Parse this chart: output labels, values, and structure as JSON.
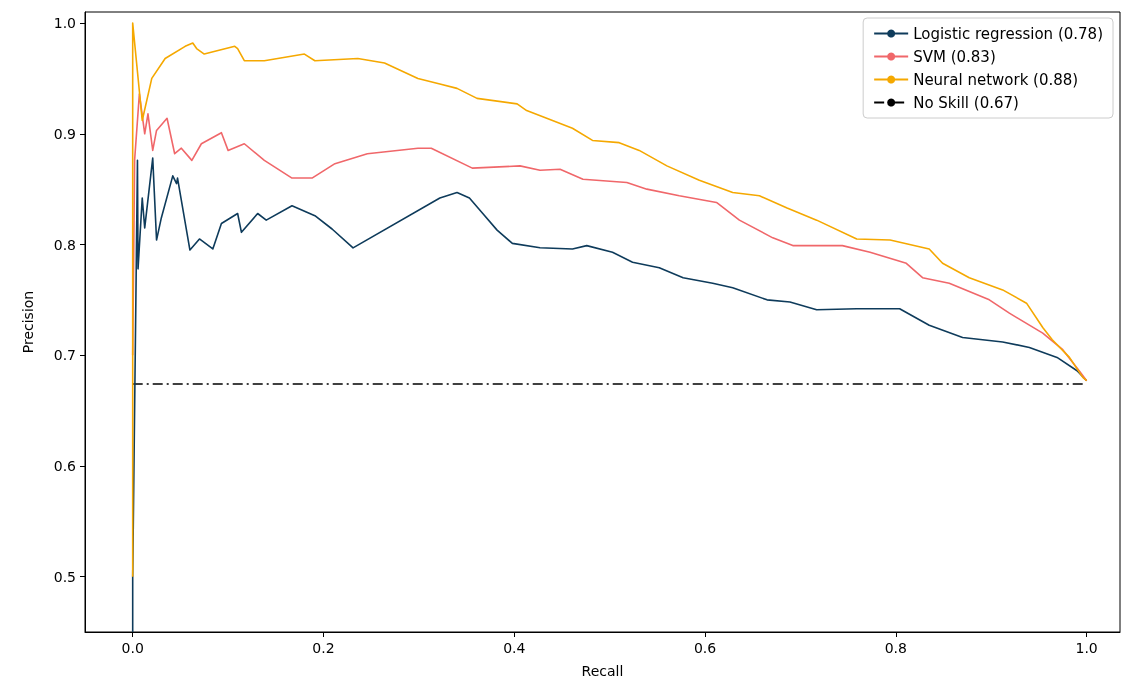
{
  "chart_data": {
    "type": "line",
    "xlabel": "Recall",
    "ylabel": "Precision",
    "xlim": [
      -0.05,
      1.035
    ],
    "ylim": [
      0.45,
      1.01
    ],
    "xticks": [
      {
        "value": 0,
        "label": "0.0"
      },
      0.2,
      0.4,
      0.6,
      0.8,
      {
        "value": 1,
        "label": "1.0"
      }
    ],
    "yticks": [
      0.5,
      0.6,
      0.7,
      0.8,
      0.9,
      {
        "value": 1,
        "label": "1.0"
      }
    ],
    "grid": false,
    "legend": "top right",
    "marker": "none",
    "series": [
      {
        "name": "Logistic regression (0.78)",
        "color": "#0e3b5b",
        "line_style": "solid",
        "x": [
          0,
          0,
          0.005,
          0.0056,
          0.01,
          0.0126,
          0.021,
          0.025,
          0.03,
          0.042,
          0.046,
          0.047,
          0.06,
          0.07,
          0.084,
          0.093,
          0.11,
          0.114,
          0.131,
          0.14,
          0.167,
          0.191,
          0.209,
          0.231,
          0.322,
          0.34,
          0.353,
          0.367,
          0.382,
          0.398,
          0.427,
          0.461,
          0.476,
          0.503,
          0.524,
          0.552,
          0.577,
          0.608,
          0.629,
          0.665,
          0.689,
          0.717,
          0.759,
          0.804,
          0.835,
          0.87,
          0.912,
          0.94,
          0.969,
          0.99,
          1.0
        ],
        "values": [
          0.45,
          0.5,
          0.876,
          0.778,
          0.842,
          0.815,
          0.878,
          0.804,
          0.824,
          0.862,
          0.855,
          0.86,
          0.795,
          0.805,
          0.796,
          0.819,
          0.828,
          0.811,
          0.828,
          0.822,
          0.835,
          0.826,
          0.814,
          0.797,
          0.842,
          0.847,
          0.842,
          0.828,
          0.813,
          0.801,
          0.797,
          0.796,
          0.799,
          0.793,
          0.784,
          0.779,
          0.77,
          0.765,
          0.761,
          0.75,
          0.748,
          0.741,
          0.742,
          0.742,
          0.727,
          0.716,
          0.712,
          0.707,
          0.698,
          0.686,
          0.677
        ]
      },
      {
        "name": "SVM (0.83)",
        "color": "#f0676a",
        "line_style": "solid",
        "x": [
          0,
          0.002,
          0.007,
          0.0126,
          0.016,
          0.021,
          0.025,
          0.036,
          0.044,
          0.051,
          0.062,
          0.072,
          0.093,
          0.1,
          0.117,
          0.138,
          0.167,
          0.188,
          0.212,
          0.246,
          0.299,
          0.313,
          0.356,
          0.406,
          0.427,
          0.448,
          0.472,
          0.518,
          0.539,
          0.573,
          0.612,
          0.636,
          0.671,
          0.692,
          0.744,
          0.773,
          0.811,
          0.828,
          0.856,
          0.898,
          0.919,
          0.954,
          0.975,
          0.993,
          1.0
        ],
        "values": [
          0.7,
          0.876,
          0.936,
          0.9,
          0.918,
          0.885,
          0.903,
          0.914,
          0.882,
          0.887,
          0.876,
          0.891,
          0.901,
          0.885,
          0.891,
          0.876,
          0.86,
          0.86,
          0.873,
          0.882,
          0.887,
          0.887,
          0.869,
          0.871,
          0.867,
          0.868,
          0.859,
          0.856,
          0.85,
          0.844,
          0.838,
          0.822,
          0.806,
          0.799,
          0.799,
          0.793,
          0.783,
          0.77,
          0.765,
          0.75,
          0.738,
          0.72,
          0.705,
          0.685,
          0.677
        ]
      },
      {
        "name": "Neural network (0.88)",
        "color": "#f5a800",
        "line_style": "solid",
        "x": [
          0,
          0,
          0.01,
          0.02,
          0.034,
          0.055,
          0.063,
          0.067,
          0.075,
          0.107,
          0.11,
          0.117,
          0.138,
          0.18,
          0.191,
          0.236,
          0.264,
          0.299,
          0.322,
          0.34,
          0.361,
          0.403,
          0.413,
          0.434,
          0.461,
          0.482,
          0.51,
          0.531,
          0.56,
          0.594,
          0.629,
          0.657,
          0.686,
          0.717,
          0.759,
          0.794,
          0.835,
          0.849,
          0.877,
          0.912,
          0.937,
          0.954,
          0.964,
          0.982,
          0.996,
          1.0
        ],
        "values": [
          0.5,
          1.0,
          0.912,
          0.95,
          0.968,
          0.979,
          0.982,
          0.977,
          0.972,
          0.979,
          0.977,
          0.966,
          0.966,
          0.972,
          0.966,
          0.968,
          0.964,
          0.95,
          0.945,
          0.941,
          0.932,
          0.927,
          0.921,
          0.914,
          0.905,
          0.894,
          0.892,
          0.885,
          0.871,
          0.858,
          0.847,
          0.844,
          0.833,
          0.822,
          0.805,
          0.804,
          0.796,
          0.783,
          0.77,
          0.759,
          0.747,
          0.725,
          0.714,
          0.698,
          0.68,
          0.677
        ]
      },
      {
        "name": "No Skill (0.67)",
        "color": "#000000",
        "line_style": "dashdot",
        "x": [
          0,
          1
        ],
        "values": [
          0.674,
          0.674
        ]
      }
    ]
  }
}
